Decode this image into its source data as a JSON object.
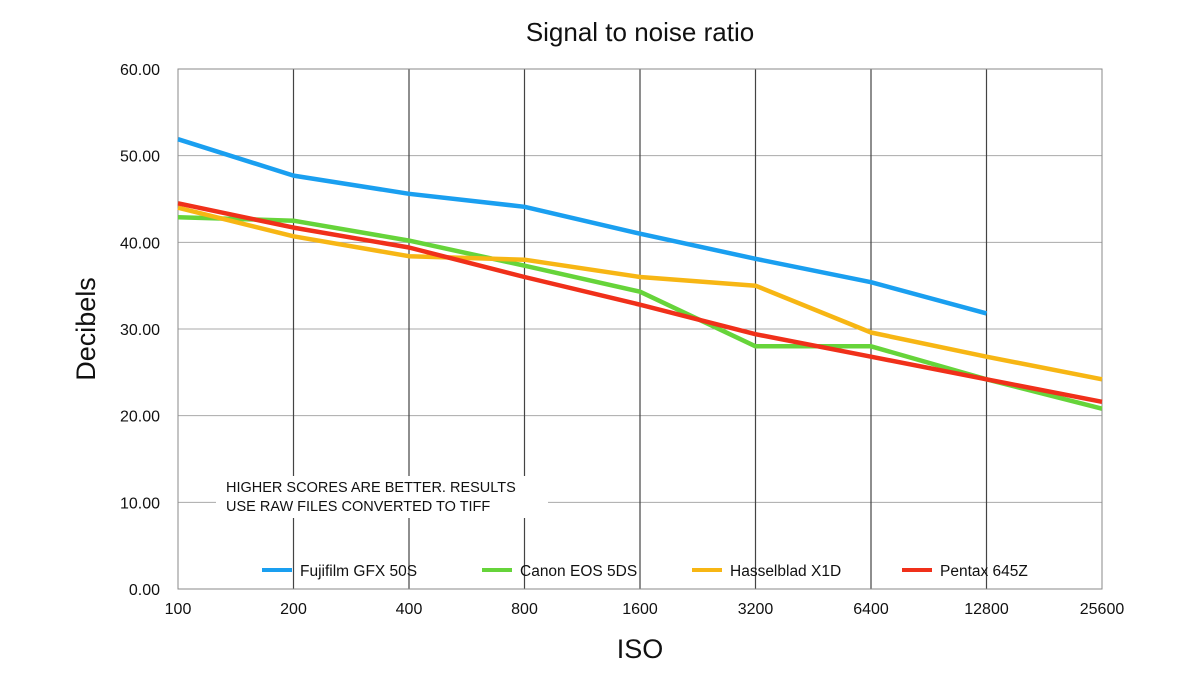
{
  "chart_data": {
    "type": "line",
    "title": "Signal to noise ratio",
    "xlabel": "ISO",
    "ylabel": "Decibels",
    "categories": [
      "100",
      "200",
      "400",
      "800",
      "1600",
      "3200",
      "6400",
      "12800",
      "25600"
    ],
    "ylim": [
      0,
      60
    ],
    "yticks": [
      "0.00",
      "10.00",
      "20.00",
      "30.00",
      "40.00",
      "50.00",
      "60.00"
    ],
    "grid": true,
    "legend_position": "bottom",
    "note": [
      "HIGHER SCORES ARE BETTER. RESULTS",
      "USE RAW FILES CONVERTED TO TIFF"
    ],
    "series": [
      {
        "name": "Fujifilm GFX 50S",
        "color": "#1a9ff0",
        "values": [
          51.9,
          47.7,
          45.6,
          44.1,
          41.0,
          38.1,
          35.4,
          31.8,
          null
        ]
      },
      {
        "name": "Canon EOS 5DS",
        "color": "#66d43a",
        "values": [
          42.9,
          42.5,
          40.2,
          37.3,
          34.3,
          28.0,
          28.0,
          24.2,
          20.8
        ]
      },
      {
        "name": "Hasselblad X1D",
        "color": "#f7b614",
        "values": [
          44.0,
          40.7,
          38.4,
          38.0,
          36.0,
          35.0,
          29.6,
          26.8,
          24.2
        ]
      },
      {
        "name": "Pentax 645Z",
        "color": "#f0301a",
        "values": [
          44.5,
          41.7,
          39.4,
          36.0,
          32.8,
          29.4,
          26.8,
          24.2,
          21.6
        ]
      }
    ]
  }
}
